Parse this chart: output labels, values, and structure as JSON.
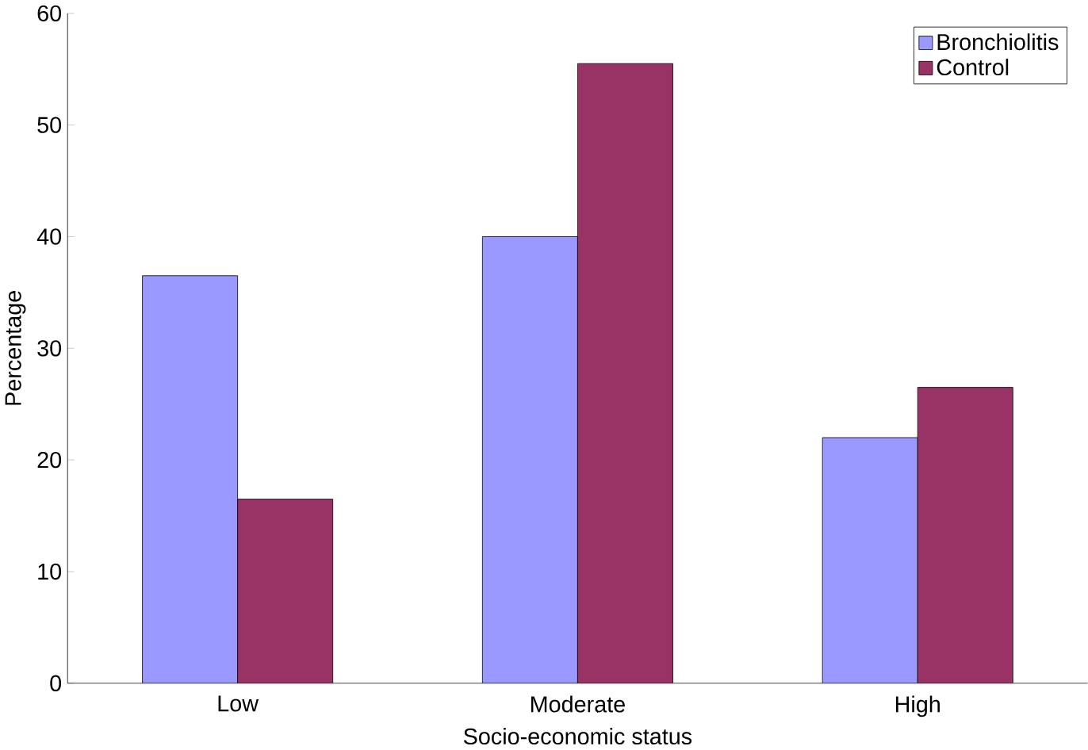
{
  "chart_data": {
    "type": "bar",
    "xlabel": "Socio-economic status",
    "ylabel": "Percentage",
    "categories": [
      "Low",
      "Moderate",
      "High"
    ],
    "series": [
      {
        "name": "Bronchiolitis",
        "color": "#9999ff",
        "values": [
          36.5,
          40,
          22
        ]
      },
      {
        "name": "Control",
        "color": "#993366",
        "values": [
          16.5,
          55.5,
          26.5
        ]
      }
    ],
    "ylim": [
      0,
      60
    ],
    "yticks": [
      0,
      10,
      20,
      30,
      40,
      50,
      60
    ],
    "legend": "top right",
    "grid": false
  }
}
